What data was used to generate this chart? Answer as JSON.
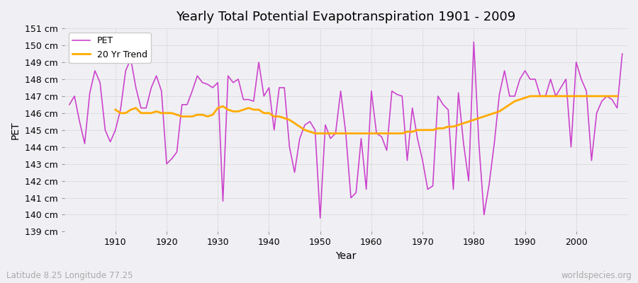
{
  "title": "Yearly Total Potential Evapotranspiration 1901 - 2009",
  "ylabel": "PET",
  "xlabel": "Year",
  "footer_left": "Latitude 8.25 Longitude 77.25",
  "footer_right": "worldspecies.org",
  "line_color_pet": "#cc44cc",
  "line_color_trend": "#ffaa00",
  "background_color": "#f0f0f4",
  "plot_bg_color": "#f0f0f4",
  "legend_labels": [
    "PET",
    "20 Yr Trend"
  ],
  "ylim": [
    139,
    151
  ],
  "yticks": [
    139,
    140,
    141,
    142,
    143,
    144,
    145,
    146,
    147,
    148,
    149,
    150,
    151
  ],
  "years": [
    1901,
    1902,
    1903,
    1904,
    1905,
    1906,
    1907,
    1908,
    1909,
    1910,
    1911,
    1912,
    1913,
    1914,
    1915,
    1916,
    1917,
    1918,
    1919,
    1920,
    1921,
    1922,
    1923,
    1924,
    1925,
    1926,
    1927,
    1928,
    1929,
    1930,
    1931,
    1932,
    1933,
    1934,
    1935,
    1936,
    1937,
    1938,
    1939,
    1940,
    1941,
    1942,
    1943,
    1944,
    1945,
    1946,
    1947,
    1948,
    1949,
    1950,
    1951,
    1952,
    1953,
    1954,
    1955,
    1956,
    1957,
    1958,
    1959,
    1960,
    1961,
    1962,
    1963,
    1964,
    1965,
    1966,
    1967,
    1968,
    1969,
    1970,
    1971,
    1972,
    1973,
    1974,
    1975,
    1976,
    1977,
    1978,
    1979,
    1980,
    1981,
    1982,
    1983,
    1984,
    1985,
    1986,
    1987,
    1988,
    1989,
    1990,
    1991,
    1992,
    1993,
    1994,
    1995,
    1996,
    1997,
    1998,
    1999,
    2000,
    2001,
    2002,
    2003,
    2004,
    2005,
    2006,
    2007,
    2008,
    2009
  ],
  "pet": [
    146.5,
    147.0,
    145.5,
    144.2,
    147.2,
    148.5,
    147.8,
    145.0,
    144.3,
    145.0,
    146.2,
    148.5,
    149.2,
    147.5,
    146.3,
    146.3,
    147.5,
    148.2,
    147.3,
    143.0,
    143.3,
    143.7,
    146.5,
    146.5,
    147.3,
    148.2,
    147.8,
    147.7,
    147.5,
    147.8,
    140.8,
    148.2,
    147.8,
    148.0,
    146.8,
    146.8,
    146.7,
    149.0,
    147.0,
    147.5,
    145.0,
    147.5,
    147.5,
    144.0,
    142.5,
    144.5,
    145.3,
    145.5,
    145.0,
    139.8,
    145.3,
    144.5,
    144.8,
    147.3,
    144.8,
    141.0,
    141.3,
    144.5,
    141.5,
    147.3,
    144.8,
    144.6,
    143.8,
    147.3,
    147.1,
    147.0,
    143.2,
    146.3,
    144.5,
    143.2,
    141.5,
    141.7,
    147.0,
    146.5,
    146.2,
    141.5,
    147.2,
    144.2,
    142.0,
    150.2,
    144.2,
    140.0,
    141.8,
    144.2,
    147.1,
    148.5,
    147.0,
    147.0,
    148.0,
    148.5,
    148.0,
    148.0,
    147.0,
    147.0,
    148.0,
    147.0,
    147.5,
    148.0,
    144.0,
    149.0,
    148.0,
    147.3,
    143.2,
    146.0,
    146.7,
    147.0,
    146.8,
    146.3,
    149.5
  ],
  "trend": [
    null,
    null,
    null,
    null,
    null,
    null,
    null,
    null,
    null,
    146.2,
    146.0,
    146.0,
    146.2,
    146.3,
    146.0,
    146.0,
    146.0,
    146.1,
    146.0,
    146.0,
    146.0,
    145.9,
    145.8,
    145.8,
    145.8,
    145.9,
    145.9,
    145.8,
    145.9,
    146.3,
    146.4,
    146.2,
    146.1,
    146.1,
    146.2,
    146.3,
    146.2,
    146.2,
    146.0,
    146.0,
    145.8,
    145.8,
    145.7,
    145.6,
    145.4,
    145.2,
    145.0,
    144.9,
    144.8,
    144.8,
    144.8,
    144.8,
    144.8,
    144.8,
    144.8,
    144.8,
    144.8,
    144.8,
    144.8,
    144.8,
    144.8,
    144.8,
    144.8,
    144.8,
    144.8,
    144.8,
    144.9,
    144.9,
    145.0,
    145.0,
    145.0,
    145.0,
    145.1,
    145.1,
    145.2,
    145.2,
    145.3,
    145.4,
    145.5,
    145.6,
    145.7,
    145.8,
    145.9,
    146.0,
    146.1,
    146.3,
    146.5,
    146.7,
    146.8,
    146.9,
    147.0,
    147.0,
    147.0,
    147.0,
    147.0,
    147.0,
    147.0,
    147.0,
    147.0,
    147.0,
    147.0,
    147.0,
    147.0,
    147.0,
    147.0,
    147.0,
    147.0,
    147.0
  ],
  "xlim": [
    1900,
    2010
  ],
  "xticks": [
    1910,
    1920,
    1930,
    1940,
    1950,
    1960,
    1970,
    1980,
    1990,
    2000
  ],
  "figsize": [
    9.0,
    4.0
  ],
  "dpi": 100,
  "title_fontsize": 13,
  "axis_label_fontsize": 10,
  "tick_fontsize": 9,
  "footer_fontsize": 8.5,
  "legend_fontsize": 9,
  "pet_linewidth": 1.2,
  "trend_linewidth": 2.0
}
